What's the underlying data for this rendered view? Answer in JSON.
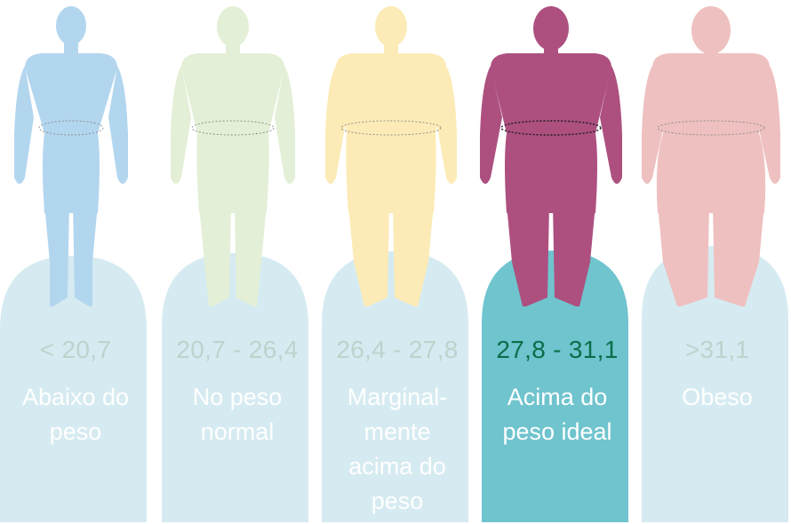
{
  "categories": [
    {
      "range": "< 20,7",
      "label_lines": [
        "Abaixo do",
        "peso"
      ],
      "figure_color": "#b3d6ef",
      "card_color": "#d6ebf1",
      "range_color": "#bcd3cd",
      "highlighted": false
    },
    {
      "range": "20,7 - 26,4",
      "label_lines": [
        "No peso",
        "normal"
      ],
      "figure_color": "#e3efd6",
      "card_color": "#d6ebf1",
      "range_color": "#bcd3cd",
      "highlighted": false
    },
    {
      "range": "26,4 - 27,8",
      "label_lines": [
        "Marginal-",
        "mente",
        "acima do",
        "peso"
      ],
      "figure_color": "#fcebb6",
      "card_color": "#d6ebf1",
      "range_color": "#bcd3cd",
      "highlighted": false
    },
    {
      "range": "27,8 - 31,1",
      "label_lines": [
        "Acima do",
        "peso ideal"
      ],
      "figure_color": "#ad5080",
      "card_color": "#6fc4ce",
      "range_color": "#0b6e4a",
      "highlighted": true
    },
    {
      "range": ">31,1",
      "label_lines": [
        "Obeso"
      ],
      "figure_color": "#efc0c0",
      "card_color": "#d6ebf1",
      "range_color": "#bcd3cd",
      "highlighted": false
    }
  ]
}
